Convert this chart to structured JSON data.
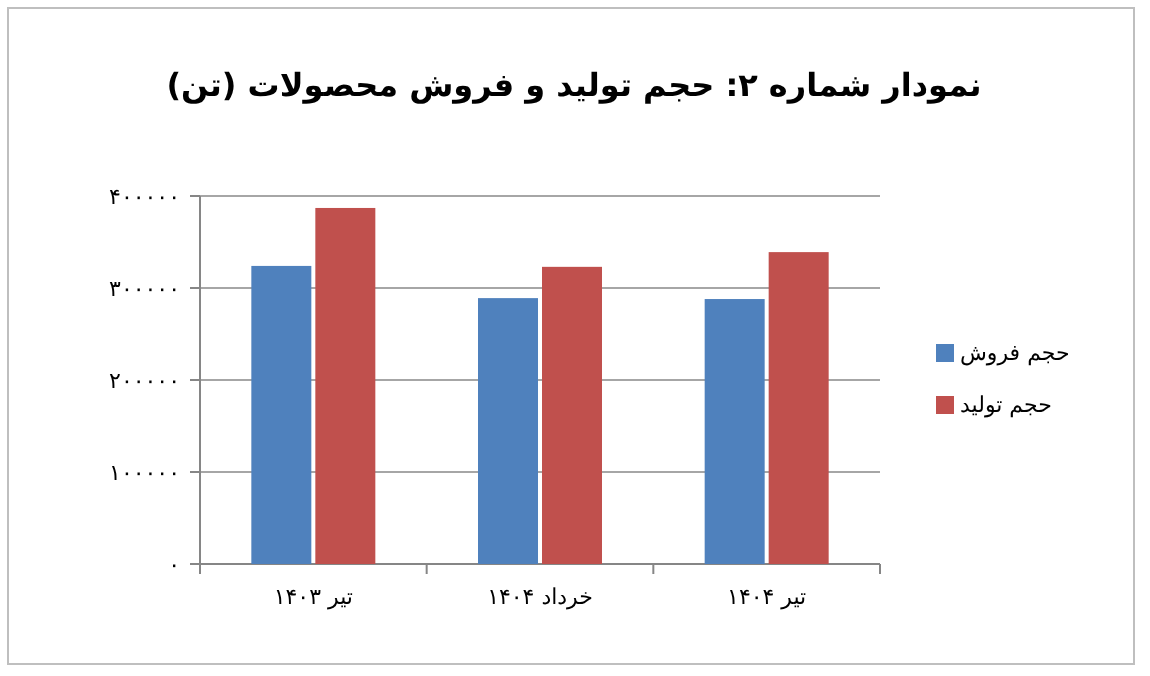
{
  "chart_data": {
    "type": "bar",
    "title": "نمودار شماره ۲: حجم تولید و فروش محصولات (تن)",
    "categories": [
      "تیر ۱۴۰۳",
      "خرداد ۱۴۰۴",
      "تیر ۱۴۰۴"
    ],
    "series": [
      {
        "name": "حجم فروش",
        "color": "#4f81bd",
        "values": [
          324000,
          289000,
          288000
        ]
      },
      {
        "name": "حجم تولید",
        "color": "#c0504d",
        "values": [
          387000,
          323000,
          339000
        ]
      }
    ],
    "ylim": [
      0,
      400000
    ],
    "yticks": [
      {
        "value": 0,
        "label": "۰"
      },
      {
        "value": 100000,
        "label": "۱۰۰۰۰۰"
      },
      {
        "value": 200000,
        "label": "۲۰۰۰۰۰"
      },
      {
        "value": 300000,
        "label": "۳۰۰۰۰۰"
      },
      {
        "value": 400000,
        "label": "۴۰۰۰۰۰"
      }
    ],
    "grid": "y",
    "legend": "right"
  }
}
